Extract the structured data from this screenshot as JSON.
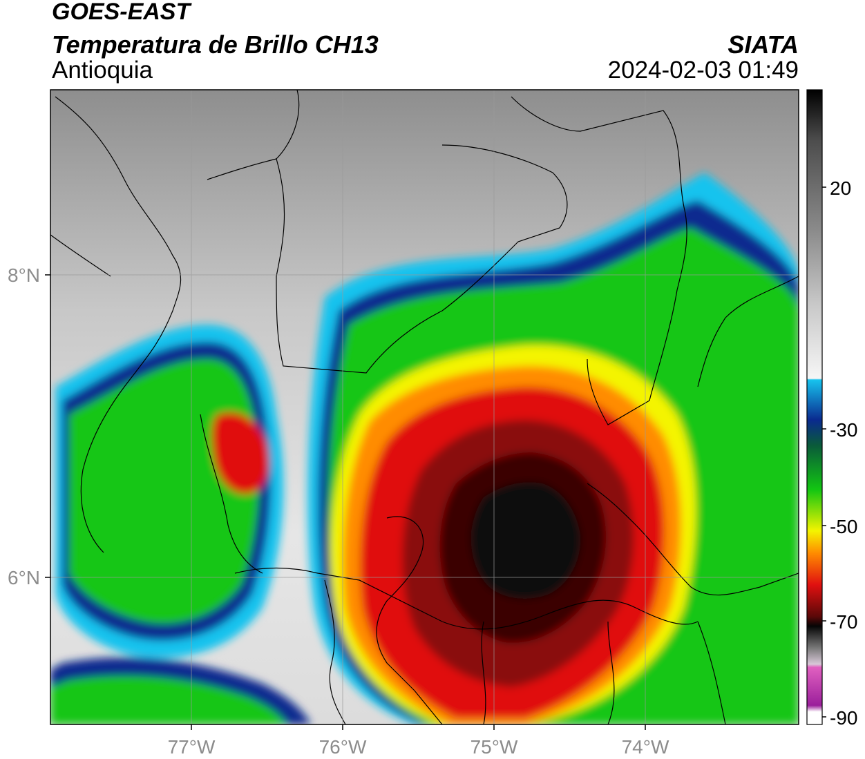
{
  "header": {
    "satellite": "GOES-EAST",
    "product": "Temperatura de Brillo CH13",
    "region": "Antioquia",
    "organization": "SIATA",
    "datetime": "2024-02-03 01:49"
  },
  "map": {
    "lon_ticks": [
      "77°W",
      "76°W",
      "75°W",
      "74°W"
    ],
    "lat_ticks": [
      "8°N",
      "6°N"
    ],
    "gridlines": true
  },
  "colorbar": {
    "ticks": [
      "20",
      "-30",
      "-50",
      "-70",
      "-90"
    ],
    "range": [
      -90,
      40
    ],
    "palette": {
      "gray_warm": "#8a8a8a",
      "white": "#f5f5f5",
      "cyan": "#17c3ee",
      "blue": "#0a2a8f",
      "green": "#12c612",
      "yellow": "#f4f400",
      "orange": "#ff8c00",
      "red": "#e01010",
      "dark_red": "#5a0808",
      "black": "#050505",
      "pink": "#e060c0",
      "purple": "#9b1f9b"
    }
  }
}
